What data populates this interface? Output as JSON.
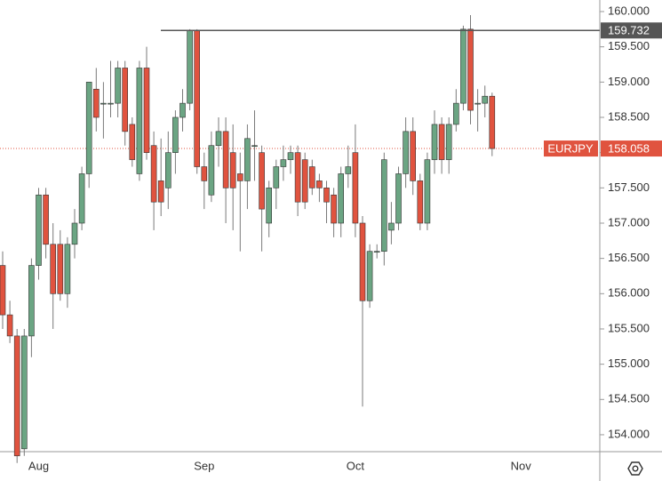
{
  "chart_data": {
    "type": "candlestick",
    "categories": [
      null,
      null,
      null,
      null,
      null,
      "Aug",
      null,
      null,
      null,
      null,
      null,
      null,
      null,
      null,
      null,
      null,
      null,
      null,
      null,
      null,
      null,
      null,
      null,
      null,
      null,
      null,
      null,
      null,
      "Sep",
      null,
      null,
      null,
      null,
      null,
      null,
      null,
      null,
      null,
      null,
      null,
      null,
      null,
      null,
      null,
      null,
      null,
      null,
      null,
      null,
      "Oct",
      null,
      null,
      null,
      null,
      null,
      null,
      null,
      null,
      null,
      null,
      null,
      null,
      null,
      null,
      null,
      null,
      null,
      null,
      null,
      null,
      null,
      null,
      "Nov"
    ],
    "open": [
      156.4,
      155.7,
      155.4,
      153.8,
      155.4,
      156.4,
      157.4,
      156.7,
      156.7,
      156.0,
      156.7,
      157.0,
      157.7,
      158.9,
      158.7,
      158.7,
      158.7,
      159.2,
      158.4,
      157.7,
      159.2,
      158.1,
      157.6,
      157.5,
      158.0,
      158.5,
      158.7,
      159.73,
      157.8,
      157.4,
      158.1,
      158.3,
      158.0,
      157.7,
      157.6,
      158.1,
      158.0,
      157.0,
      157.5,
      157.8,
      157.9,
      158.0,
      157.9,
      157.8,
      157.6,
      157.5,
      157.4,
      157.0,
      157.7,
      158.0,
      157.0,
      155.9,
      156.6,
      156.6,
      156.9,
      157.0,
      157.7,
      158.3,
      157.6,
      157.0,
      157.9,
      158.4,
      157.9,
      158.4,
      158.7,
      159.75,
      158.7,
      158.7,
      158.8,
      null,
      null,
      null,
      null
    ],
    "high": [
      156.6,
      155.9,
      155.5,
      155.5,
      156.5,
      157.5,
      157.5,
      157.0,
      156.9,
      156.8,
      157.2,
      157.8,
      159.0,
      159.2,
      159.0,
      159.3,
      159.3,
      159.3,
      158.5,
      159.3,
      159.5,
      158.3,
      158.2,
      158.3,
      158.6,
      158.9,
      159.75,
      159.75,
      158.0,
      158.3,
      158.5,
      158.5,
      158.4,
      158.0,
      158.4,
      158.6,
      158.1,
      157.6,
      157.9,
      158.1,
      158.1,
      158.1,
      158.0,
      157.9,
      157.7,
      157.6,
      157.5,
      157.8,
      158.1,
      158.4,
      157.1,
      156.7,
      156.7,
      158.0,
      157.3,
      157.8,
      158.5,
      158.5,
      157.7,
      158.0,
      158.6,
      158.5,
      158.5,
      158.9,
      159.8,
      159.95,
      158.9,
      158.95,
      158.85,
      null,
      null,
      null,
      null
    ],
    "low": [
      155.5,
      155.3,
      153.6,
      153.7,
      155.1,
      156.2,
      156.5,
      155.5,
      155.9,
      155.8,
      156.5,
      156.9,
      157.5,
      158.3,
      158.2,
      158.5,
      158.5,
      158.1,
      157.8,
      157.6,
      157.9,
      156.9,
      157.1,
      157.2,
      157.7,
      158.3,
      158.6,
      157.7,
      157.2,
      157.3,
      157.8,
      157.0,
      156.9,
      156.6,
      157.2,
      157.6,
      156.6,
      156.8,
      157.2,
      157.6,
      157.7,
      157.1,
      157.2,
      157.4,
      157.3,
      157.0,
      156.8,
      156.8,
      157.5,
      156.8,
      154.4,
      155.8,
      156.5,
      156.4,
      156.7,
      156.9,
      157.5,
      157.4,
      156.9,
      156.9,
      157.7,
      157.7,
      157.7,
      158.3,
      158.6,
      158.4,
      158.3,
      158.5,
      157.95,
      null,
      null,
      null,
      null
    ],
    "close": [
      155.7,
      155.4,
      153.7,
      155.4,
      156.4,
      157.4,
      156.7,
      156.0,
      156.0,
      156.7,
      157.0,
      157.7,
      159.0,
      158.5,
      158.7,
      158.7,
      159.2,
      158.3,
      157.9,
      159.2,
      158.0,
      157.3,
      157.3,
      158.0,
      158.5,
      158.7,
      159.73,
      157.8,
      157.6,
      158.1,
      158.3,
      157.5,
      157.5,
      157.6,
      158.2,
      158.1,
      157.2,
      157.5,
      157.8,
      157.9,
      158.0,
      157.3,
      157.3,
      157.5,
      157.5,
      157.3,
      157.0,
      157.7,
      157.8,
      157.0,
      155.9,
      156.6,
      156.6,
      157.9,
      157.0,
      157.7,
      158.3,
      157.6,
      157.0,
      157.9,
      158.4,
      157.9,
      158.4,
      158.7,
      159.75,
      158.6,
      158.7,
      158.8,
      158.058,
      null,
      null,
      null,
      null
    ],
    "up_color": "#6ba583",
    "down_color": "#e0533f",
    "ylim": [
      153.76,
      160.164
    ],
    "yticks": [
      {
        "value": 154,
        "label": "154.000"
      },
      {
        "value": 154.5,
        "label": "154.500"
      },
      {
        "value": 155,
        "label": "155.000"
      },
      {
        "value": 155.5,
        "label": "155.500"
      },
      {
        "value": 156,
        "label": "156.000"
      },
      {
        "value": 156.5,
        "label": "156.500"
      },
      {
        "value": 157,
        "label": "157.000"
      },
      {
        "value": 157.5,
        "label": "157.500"
      },
      {
        "value": 158,
        "label": "158.000"
      },
      {
        "value": 158.5,
        "label": "158.500"
      },
      {
        "value": 159,
        "label": "159.000"
      },
      {
        "value": 159.5,
        "label": "159.500"
      },
      {
        "value": 160,
        "label": "160.000"
      }
    ],
    "hline": {
      "value": 159.732,
      "color": "#555555"
    },
    "last_price": {
      "name": "EURJPY",
      "value": 158.058,
      "color": "#e0533f"
    }
  }
}
